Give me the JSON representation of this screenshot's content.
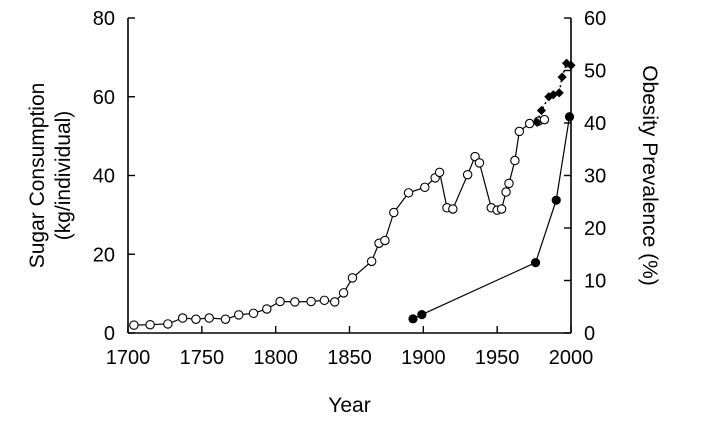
{
  "chart_data": {
    "type": "line",
    "xlabel": "Year",
    "ylabel_left_line1": "Sugar Consumption",
    "ylabel_left_line2": "(kg/individual)",
    "ylabel_right": "Obesity Prevalence (%)",
    "xlim": [
      1700,
      2000
    ],
    "ylim_left": [
      0,
      80
    ],
    "ylim_right": [
      0,
      60
    ],
    "x_ticks": [
      1700,
      1750,
      1800,
      1850,
      1900,
      1950,
      2000
    ],
    "y_left_ticks": [
      0,
      20,
      40,
      60,
      80
    ],
    "y_right_ticks": [
      0,
      10,
      20,
      30,
      40,
      50,
      60
    ],
    "legend": "none",
    "grid": false,
    "series": [
      {
        "axis": "left",
        "marker": "open-circle",
        "line": "solid",
        "x": [
          1704,
          1715,
          1727,
          1737,
          1746,
          1755,
          1766,
          1775,
          1785,
          1794,
          1803,
          1813,
          1824,
          1833,
          1840,
          1846,
          1852,
          1865,
          1870,
          1874,
          1880,
          1890,
          1901,
          1908,
          1911,
          1916,
          1920,
          1930,
          1935,
          1938,
          1946,
          1950,
          1953,
          1956,
          1958,
          1962,
          1965,
          1972,
          1978,
          1982
        ],
        "y": [
          2.0,
          2.1,
          2.3,
          3.8,
          3.5,
          3.8,
          3.5,
          4.6,
          5.0,
          6.1,
          8.0,
          7.9,
          8.0,
          8.3,
          7.9,
          10.2,
          14.0,
          18.2,
          22.8,
          23.5,
          30.6,
          35.6,
          37.0,
          39.4,
          40.8,
          31.8,
          31.5,
          40.2,
          44.8,
          43.2,
          31.8,
          31.2,
          31.5,
          35.8,
          38.0,
          43.8,
          51.2,
          53.2,
          53.8,
          54.2
        ]
      },
      {
        "axis": "left",
        "marker": "filled-diamond",
        "line": "dotted",
        "x": [
          1977,
          1980,
          1985,
          1988,
          1992,
          1994,
          1997,
          2000
        ],
        "y": [
          53.5,
          56.5,
          60.0,
          60.5,
          61.0,
          65.0,
          68.5,
          68.0
        ]
      },
      {
        "axis": "right",
        "marker": "filled-circle",
        "line": "solid",
        "x": [
          1893,
          1899,
          1976,
          1990,
          1999
        ],
        "y": [
          2.7,
          3.5,
          13.4,
          25.3,
          41.2
        ]
      }
    ]
  }
}
